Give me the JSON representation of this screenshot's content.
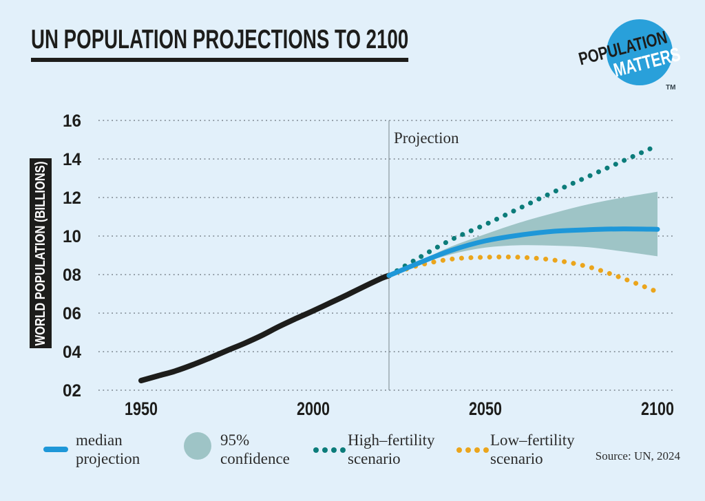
{
  "colors": {
    "background": "#e2f0fa",
    "ink": "#1d1d1b",
    "text": "#2b2b2b",
    "grid": "#8f9aa3",
    "divider": "#9aa7b0"
  },
  "logo": {
    "line1": "POPULATION",
    "line2": "MATTERS",
    "tm": "TM",
    "circle_color": "#29a0da"
  },
  "source": "Source: UN, 2024",
  "legend": {
    "items": [
      {
        "swatch": "line",
        "color": "#1e97d8",
        "line1": "median",
        "line2": "projection"
      },
      {
        "swatch": "circle",
        "color": "#9ec4c6",
        "line1": "95%",
        "line2": "confidence"
      },
      {
        "swatch": "dots",
        "color": "#0c7c7a",
        "line1": "High–fertility",
        "line2": "scenario"
      },
      {
        "swatch": "dots",
        "color": "#eba51c",
        "line1": "Low–fertility",
        "line2": "scenario"
      }
    ]
  },
  "chart_data": {
    "type": "line",
    "title": "UN POPULATION PROJECTIONS TO 2100",
    "ylabel": "WORLD POPULATION (BILLIONS)",
    "ylim": [
      2,
      16
    ],
    "xlim": [
      1950,
      2100
    ],
    "grid": "dotted-horizontal",
    "legend_position": "bottom",
    "y_ticks": [
      "02",
      "04",
      "06",
      "08",
      "10",
      "12",
      "14",
      "16"
    ],
    "x_ticks": [
      "1950",
      "2000",
      "2050",
      "2100"
    ],
    "projection": {
      "label": "Projection",
      "year": 2022
    },
    "series": [
      {
        "name": "historical",
        "style": "solid",
        "color": "#1d1d1b",
        "x": [
          1950,
          1955,
          1960,
          1965,
          1970,
          1975,
          1980,
          1985,
          1990,
          1995,
          2000,
          2005,
          2010,
          2015,
          2020,
          2022
        ],
        "y": [
          2.5,
          2.75,
          3.0,
          3.32,
          3.68,
          4.06,
          4.43,
          4.84,
          5.3,
          5.72,
          6.12,
          6.54,
          6.96,
          7.4,
          7.82,
          7.95
        ]
      },
      {
        "name": "95% confidence",
        "style": "band",
        "color": "#9ec4c6",
        "x": [
          2022,
          2030,
          2040,
          2050,
          2060,
          2070,
          2080,
          2090,
          2100
        ],
        "y_upper": [
          7.95,
          8.62,
          9.45,
          10.1,
          10.7,
          11.2,
          11.65,
          12.0,
          12.3
        ],
        "y_lower": [
          7.95,
          8.48,
          9.05,
          9.4,
          9.52,
          9.5,
          9.42,
          9.2,
          8.95
        ]
      },
      {
        "name": "high-fertility scenario",
        "style": "dotted",
        "color": "#0c7c7a",
        "x": [
          2022,
          2030,
          2040,
          2050,
          2060,
          2070,
          2080,
          2090,
          2100
        ],
        "y": [
          7.95,
          8.8,
          9.8,
          10.6,
          11.45,
          12.3,
          13.1,
          13.9,
          14.7
        ]
      },
      {
        "name": "low-fertility scenario",
        "style": "dotted",
        "color": "#eba51c",
        "x": [
          2022,
          2030,
          2040,
          2050,
          2060,
          2070,
          2080,
          2090,
          2100
        ],
        "y": [
          7.95,
          8.45,
          8.8,
          8.9,
          8.9,
          8.75,
          8.4,
          7.8,
          7.1
        ]
      },
      {
        "name": "median projection",
        "style": "solid",
        "color": "#1e97d8",
        "x": [
          2022,
          2030,
          2040,
          2050,
          2060,
          2070,
          2080,
          2090,
          2100
        ],
        "y": [
          7.95,
          8.55,
          9.25,
          9.75,
          10.05,
          10.25,
          10.33,
          10.37,
          10.35
        ]
      }
    ]
  }
}
